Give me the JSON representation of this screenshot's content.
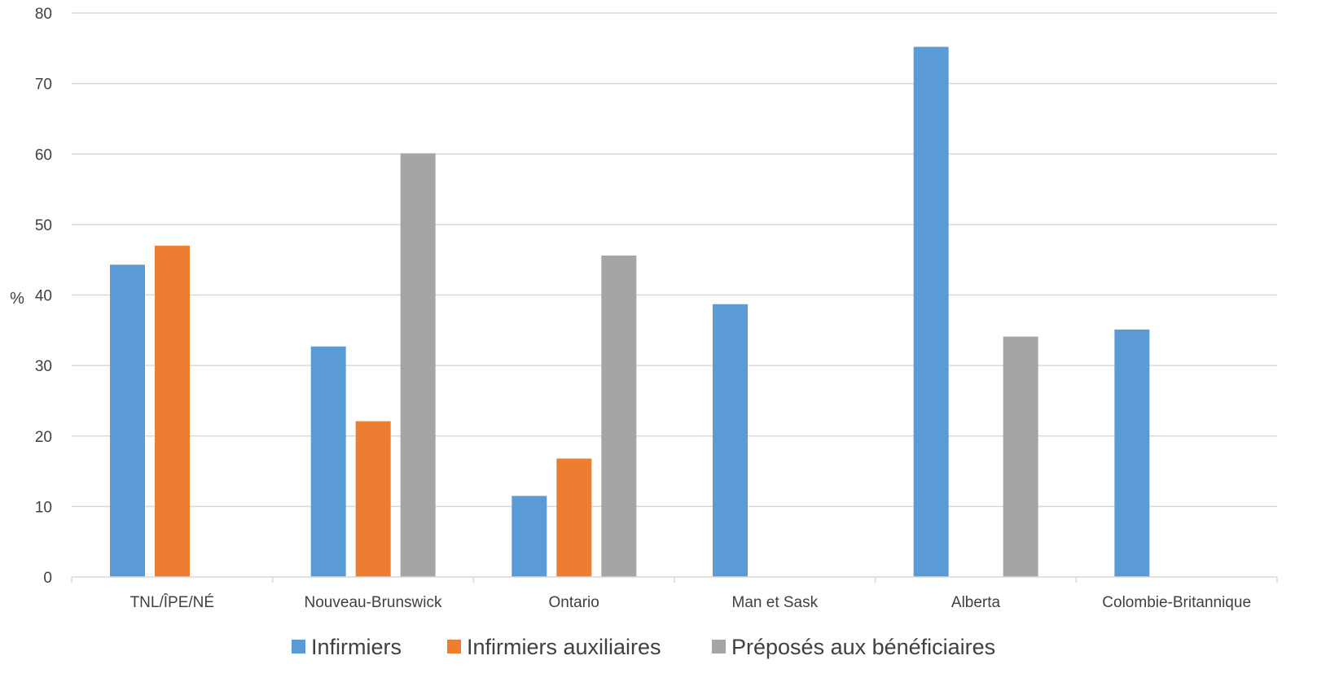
{
  "chart_data": {
    "type": "bar",
    "title": "",
    "xlabel": "",
    "ylabel": "%",
    "ylim": [
      0,
      80
    ],
    "yticks": [
      0,
      10,
      20,
      30,
      40,
      50,
      60,
      70,
      80
    ],
    "grid": true,
    "legend_position": "bottom",
    "categories": [
      "TNL/ÎPE/NÉ",
      "Nouveau-Brunswick",
      "Ontario",
      "Man et Sask",
      "Alberta",
      "Colombie-Britannique"
    ],
    "series": [
      {
        "name": "Infirmiers",
        "color": "#5b9bd5",
        "values": [
          44.3,
          32.7,
          11.5,
          38.7,
          75.2,
          35.1
        ]
      },
      {
        "name": "Infirmiers auxiliaires",
        "color": "#ed7d31",
        "values": [
          47.0,
          22.1,
          16.8,
          null,
          null,
          null
        ]
      },
      {
        "name": "Préposés aux bénéficiaires",
        "color": "#a5a5a5",
        "values": [
          null,
          60.1,
          45.6,
          null,
          34.1,
          null
        ]
      }
    ]
  }
}
